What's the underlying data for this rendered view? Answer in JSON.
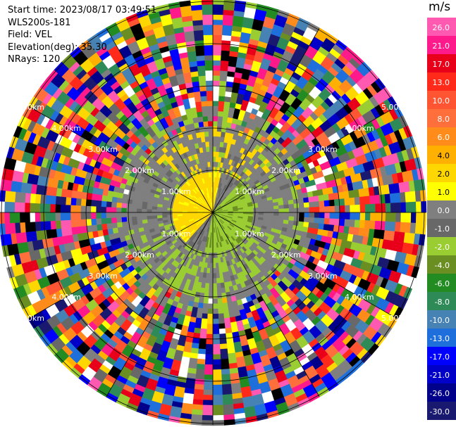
{
  "header": {
    "start_time": "Start time: 2023/08/17 03:49:51",
    "instrument": "WLS200s-181",
    "field": "Field: VEL",
    "elevation": "Elevation(deg): 35.30",
    "nrays": "NRays: 120"
  },
  "colorbar": {
    "unit": "m/s",
    "ticks": [
      "26.0",
      "21.0",
      "17.0",
      "13.0",
      "10.0",
      "8.0",
      "6.0",
      "4.0",
      "2.0",
      "1.0",
      "0.0",
      "-1.0",
      "-2.0",
      "-4.0",
      "-6.0",
      "-8.0",
      "-10.0",
      "-13.0",
      "-17.0",
      "-21.0",
      "-26.0",
      "-30.0"
    ],
    "colors": [
      "#ff59b1",
      "#ff1a8c",
      "#e8001a",
      "#ff2a1a",
      "#ff5533",
      "#ff6f3c",
      "#ff8c1a",
      "#ffb000",
      "#ffd700",
      "#ffff00",
      "#7f7f7f",
      "#686868",
      "#9acd32",
      "#6b8e23",
      "#228b22",
      "#2e8b57",
      "#4682b4",
      "#1e6fdc",
      "#0000ff",
      "#0000c8",
      "#00008b",
      "#191970"
    ]
  },
  "chart_data": {
    "type": "ppi",
    "field": "VEL",
    "units": "m/s",
    "nrays": 120,
    "elevation_deg": 35.3,
    "range_rings_km": [
      1.0,
      2.0,
      3.0,
      4.0,
      5.0
    ],
    "ring_label_text": [
      "1.00km",
      "2.00km",
      "3.00km",
      "4.00km",
      "5.00km"
    ],
    "max_range_km": 5.05,
    "radial_spokes_deg": [
      0,
      30,
      60,
      90,
      120,
      150,
      180,
      210,
      240,
      270,
      300,
      330
    ],
    "description_of_field": {
      "center_0_to_1km": "weak velocities: west/southwest sector about +1 to +2 m/s, east/northeast sector about -1 to -2 m/s",
      "ring_1_to_2km": "mostly near 0 m/s with a -1 to -2 m/s band in the south and east and +1 to +2 m/s patches to the north",
      "beyond_2km": "noise, spread across the full colour range"
    }
  }
}
